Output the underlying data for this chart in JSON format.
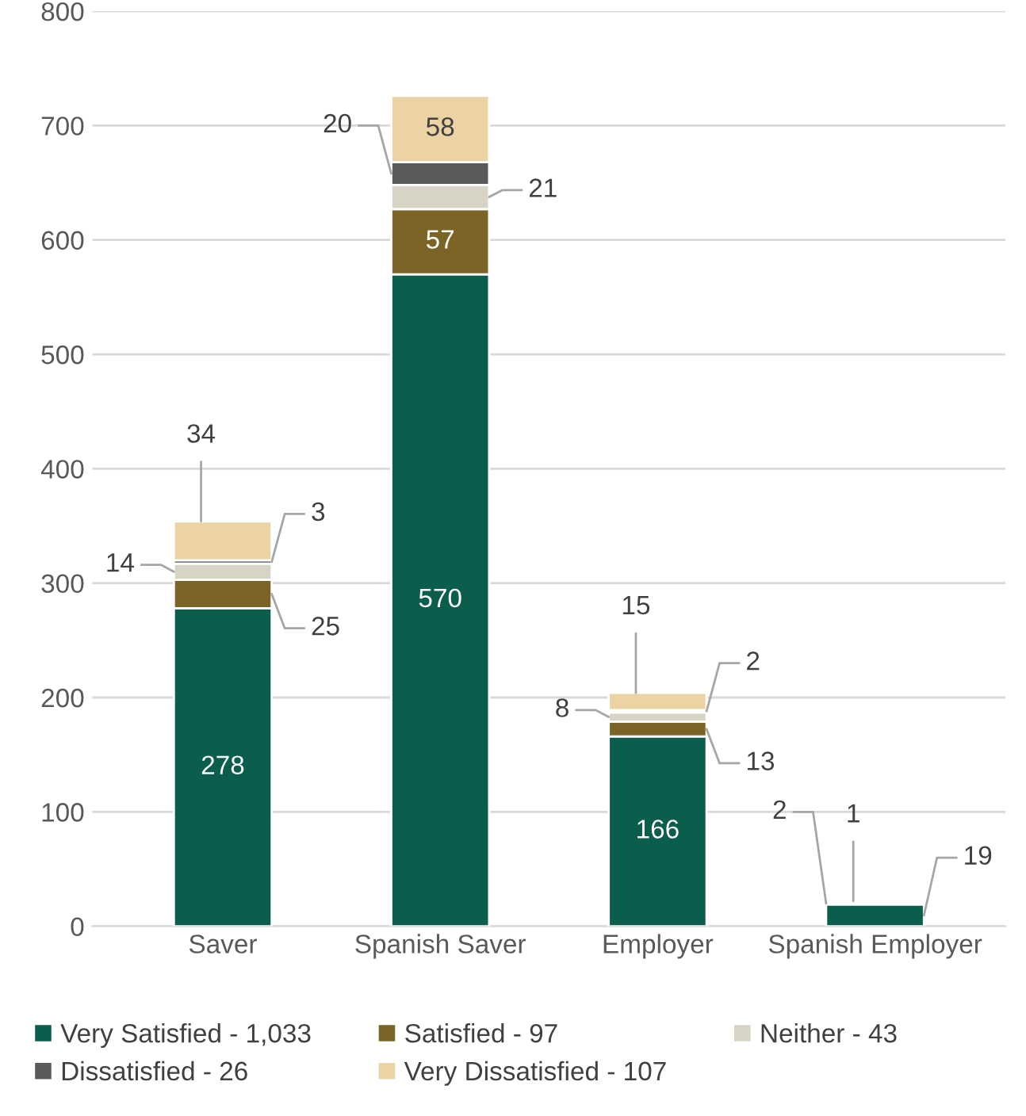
{
  "chart_data": {
    "type": "bar",
    "stacked": true,
    "categories": [
      "Saver",
      "Spanish Saver",
      "Employer",
      "Spanish Employer"
    ],
    "series": [
      {
        "name": "Very Satisfied - 1,033",
        "color": "#0b5e4e",
        "values": [
          278,
          570,
          166,
          19
        ],
        "value_labels": [
          "278",
          "570",
          "166",
          "19"
        ]
      },
      {
        "name": "Satisfied - 97",
        "color": "#7b6425",
        "values": [
          25,
          57,
          13,
          2
        ],
        "value_labels": [
          "25",
          "57",
          "13",
          "2"
        ]
      },
      {
        "name": "Neither - 43",
        "color": "#d7d4c6",
        "values": [
          14,
          21,
          8,
          0
        ],
        "value_labels": [
          "14",
          "21",
          "8",
          null
        ]
      },
      {
        "name": "Dissatisfied - 26",
        "color": "#5a5a5a",
        "values": [
          3,
          20,
          2,
          1
        ],
        "value_labels": [
          "3",
          "20",
          "2",
          "1"
        ]
      },
      {
        "name": "Very Dissatisfied - 107",
        "color": "#ecd3a3",
        "values": [
          34,
          58,
          15,
          0
        ],
        "value_labels": [
          "34",
          "58",
          "15",
          null
        ]
      }
    ],
    "ylim": [
      0,
      800
    ],
    "yticks": [
      0,
      100,
      200,
      300,
      400,
      500,
      600,
      700,
      800
    ],
    "grid": "y",
    "legend": "bottom"
  }
}
